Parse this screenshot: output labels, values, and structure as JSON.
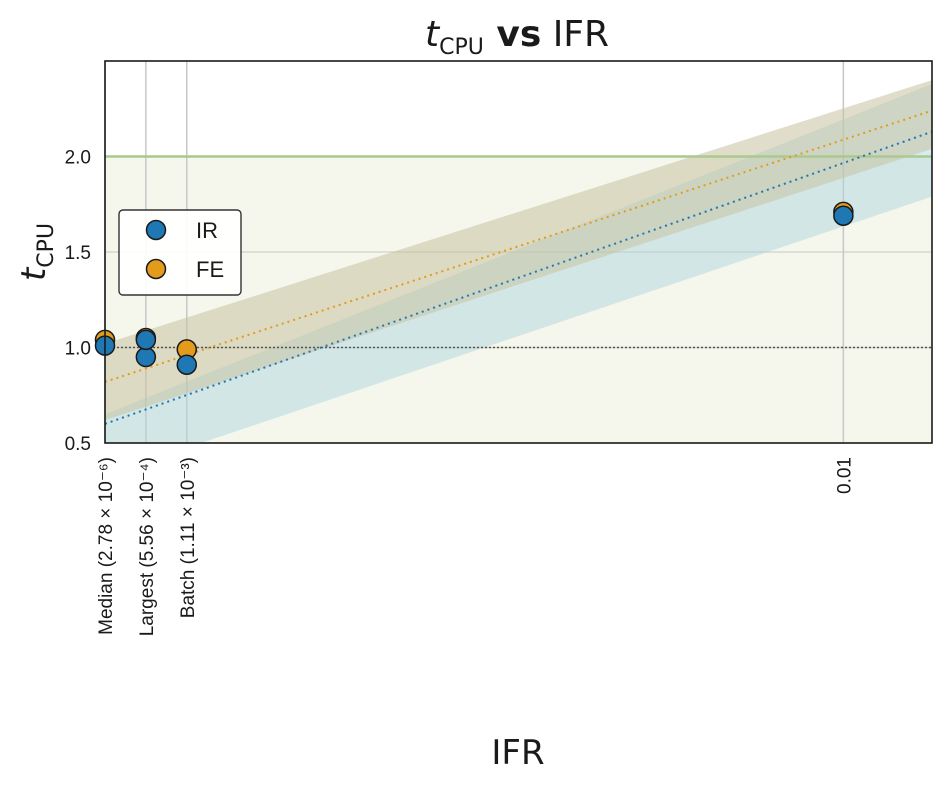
{
  "chart_data": {
    "type": "scatter",
    "title": {
      "main": "t",
      "sub": "CPU",
      "bold": " vs",
      "rest": " IFR"
    },
    "xlabel": "IFR",
    "ylabel": {
      "main": "t",
      "sub": "CPU"
    },
    "xscale": "linear",
    "xlim": [
      2.8e-06,
      0.0112
    ],
    "ylim": [
      0.5,
      2.5
    ],
    "yticks": [
      {
        "value": 0.5,
        "label": "0.5"
      },
      {
        "value": 1.0,
        "label": "1.0"
      },
      {
        "value": 1.5,
        "label": "1.5"
      },
      {
        "value": 2.0,
        "label": "2.0"
      }
    ],
    "xticks": [
      {
        "value": 2.78e-06,
        "label": "Median (2.78 × 10⁻⁶)"
      },
      {
        "value": 0.000556,
        "label": "Largest (5.56 × 10⁻⁴)"
      },
      {
        "value": 0.00111,
        "label": "Batch (1.11 × 10⁻³)"
      },
      {
        "value": 0.01,
        "label": "0.01"
      }
    ],
    "grid": true,
    "legend_position": "center-left",
    "reference_lines": [
      {
        "y": 2.0,
        "color": "#a9c98f"
      },
      {
        "y": 1.0,
        "color": "#555555",
        "style": "dotted"
      }
    ],
    "series": [
      {
        "name": "IR",
        "color": "#1f77b4",
        "points": [
          {
            "x": 2.78e-06,
            "y": 1.01
          },
          {
            "x": 0.000556,
            "y": 0.95
          },
          {
            "x": 0.000556,
            "y": 1.04
          },
          {
            "x": 0.00111,
            "y": 0.91
          },
          {
            "x": 0.01,
            "y": 1.69
          }
        ],
        "fit": {
          "x": [
            2.8e-06,
            0.0112
          ],
          "y": [
            0.6,
            2.13
          ]
        },
        "band": {
          "x": [
            2.8e-06,
            0.0112
          ],
          "lower": [
            0.33,
            1.79
          ],
          "upper": [
            0.65,
            2.38
          ]
        }
      },
      {
        "name": "FE",
        "color": "#e39b1c",
        "points": [
          {
            "x": 2.78e-06,
            "y": 1.04
          },
          {
            "x": 0.000556,
            "y": 1.05
          },
          {
            "x": 0.00111,
            "y": 0.99
          },
          {
            "x": 0.01,
            "y": 1.71
          }
        ],
        "fit": {
          "x": [
            2.8e-06,
            0.0112
          ],
          "y": [
            0.82,
            2.24
          ]
        },
        "band": {
          "x": [
            2.8e-06,
            0.0112
          ],
          "lower": [
            0.62,
            2.04
          ],
          "upper": [
            1.02,
            2.4
          ]
        }
      }
    ]
  }
}
